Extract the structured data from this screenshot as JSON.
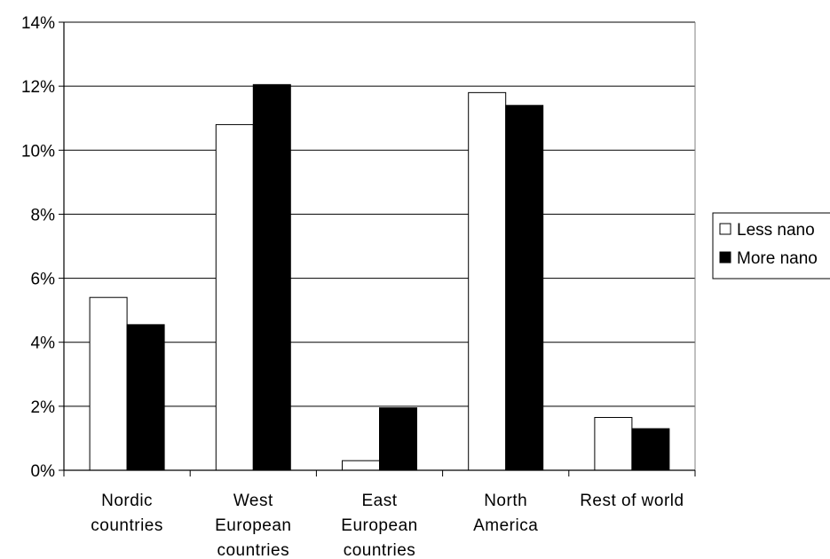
{
  "chart_data": {
    "type": "bar",
    "categories": [
      [
        "Nordic",
        "countries"
      ],
      [
        "West",
        "European",
        "countries"
      ],
      [
        "East",
        "European",
        "countries"
      ],
      [
        "North",
        "America"
      ],
      [
        "Rest of world"
      ]
    ],
    "series": [
      {
        "name": "Less nano",
        "values": [
          5.4,
          10.8,
          0.3,
          11.8,
          1.65
        ],
        "fill": "#ffffff",
        "stroke": "#000000"
      },
      {
        "name": "More nano",
        "values": [
          4.55,
          12.05,
          1.95,
          11.4,
          1.3
        ],
        "fill": "#000000",
        "stroke": "#000000"
      }
    ],
    "y_ticks": [
      "0%",
      "2%",
      "4%",
      "6%",
      "8%",
      "10%",
      "12%",
      "14%"
    ],
    "ylim": [
      0,
      14
    ],
    "grid": true,
    "legend_position": "right"
  }
}
